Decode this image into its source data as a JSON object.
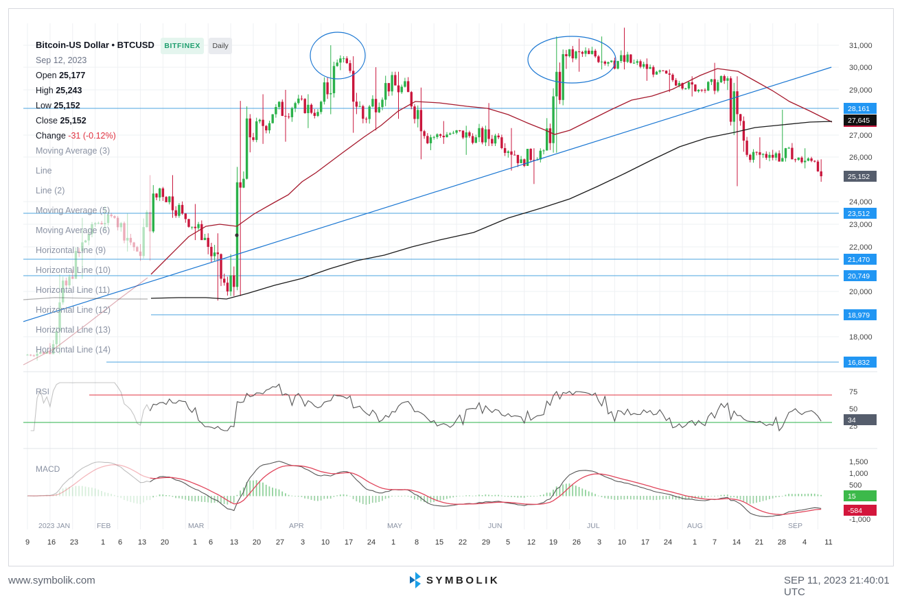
{
  "legend": {
    "title": "Bitcoin-US Dollar • BTCUSD",
    "exchange": "BITFINEX",
    "interval": "Daily",
    "date": "Sep 12, 2023",
    "open_label": "Open",
    "open": "25,177",
    "high_label": "High",
    "high": "25,243",
    "low_label": "Low",
    "low": "25,152",
    "close_label": "Close",
    "close": "25,152",
    "change_label": "Change",
    "change": "-31 (-0.12%)",
    "indicators": [
      "Moving Average (3)",
      "Line",
      "Line (2)",
      "Moving Average (5)",
      "Moving Average (6)",
      "Horizontal Line (9)",
      "Horizontal Line (10)",
      "Horizontal Line (11)",
      "Horizontal Line (12)",
      "Horizontal Line (13)",
      "Horizontal Line (14)"
    ]
  },
  "footer": {
    "website": "www.symbolik.com",
    "brand": "SYMBOLIK",
    "timestamp": "SEP 11, 2023 21:40:01 UTC"
  },
  "colors": {
    "up": "#2bb14a",
    "down": "#c9163c",
    "ma_red": "#a5172b",
    "ma_black": "#1a1a1a",
    "trend_blue": "#1976d2",
    "hline": "#4aa3df",
    "rsi_upper": "#e0313f",
    "rsi_lower": "#2bb14a"
  },
  "chart_data": [
    {
      "type": "candlestick",
      "title": "Bitcoin-US Dollar • BTCUSD",
      "x_axis": {
        "month_labels": [
          "2023 JAN",
          "FEB",
          "MAR",
          "APR",
          "MAY",
          "JUN",
          "JUL",
          "AUG",
          "SEP"
        ],
        "day_labels": [
          "9",
          "16",
          "23",
          "1",
          "6",
          "13",
          "20",
          "1",
          "6",
          "13",
          "20",
          "27",
          "3",
          "10",
          "17",
          "24",
          "1",
          "8",
          "15",
          "22",
          "29",
          "5",
          "12",
          "19",
          "26",
          "3",
          "10",
          "17",
          "24",
          "1",
          "7",
          "14",
          "21",
          "28",
          "4",
          "11"
        ]
      },
      "y_axis": {
        "ticks": [
          18000,
          20000,
          22000,
          23000,
          24000,
          26000,
          27000,
          29000,
          30000,
          31000
        ],
        "ylim": [
          16500,
          31600
        ]
      },
      "price_tags": [
        28161,
        27645,
        25152,
        23512,
        21470,
        20749,
        18979,
        16832
      ],
      "horizontal_lines": [
        28161,
        23512,
        21470,
        20749,
        18979,
        16832
      ],
      "trendline": {
        "from": {
          "date": "2023-01-09",
          "value": 19400
        },
        "to": {
          "date": "2023-09-12",
          "value": 30000
        }
      },
      "ohlc_weekly_approx": [
        {
          "date": "2023-01-09",
          "open": 17150,
          "high": 17400,
          "low": 16900,
          "close": 17300
        },
        {
          "date": "2023-01-16",
          "open": 17300,
          "high": 20800,
          "low": 17200,
          "close": 20700
        },
        {
          "date": "2023-01-23",
          "open": 20700,
          "high": 23300,
          "low": 20600,
          "close": 23000
        },
        {
          "date": "2023-01-30",
          "open": 23000,
          "high": 23800,
          "low": 22700,
          "close": 23300
        },
        {
          "date": "2023-02-06",
          "open": 23300,
          "high": 23500,
          "low": 21800,
          "close": 21800
        },
        {
          "date": "2023-02-13",
          "open": 21800,
          "high": 25200,
          "low": 21400,
          "close": 24600
        },
        {
          "date": "2023-02-20",
          "open": 24600,
          "high": 25200,
          "low": 23300,
          "close": 23500
        },
        {
          "date": "2023-02-27",
          "open": 23500,
          "high": 23900,
          "low": 22300,
          "close": 22400
        },
        {
          "date": "2023-03-06",
          "open": 22400,
          "high": 22600,
          "low": 19600,
          "close": 20000
        },
        {
          "date": "2023-03-13",
          "open": 20000,
          "high": 28500,
          "low": 19800,
          "close": 26900
        },
        {
          "date": "2023-03-20",
          "open": 26900,
          "high": 28800,
          "low": 26600,
          "close": 27900
        },
        {
          "date": "2023-03-27",
          "open": 27900,
          "high": 29000,
          "low": 26700,
          "close": 28400
        },
        {
          "date": "2023-04-03",
          "open": 28400,
          "high": 28800,
          "low": 27300,
          "close": 28000
        },
        {
          "date": "2023-04-10",
          "open": 28000,
          "high": 31000,
          "low": 27900,
          "close": 30400
        },
        {
          "date": "2023-04-17",
          "open": 30400,
          "high": 30500,
          "low": 27100,
          "close": 27700
        },
        {
          "date": "2023-04-24",
          "open": 27700,
          "high": 30000,
          "low": 27200,
          "close": 29300
        },
        {
          "date": "2023-05-01",
          "open": 29300,
          "high": 29800,
          "low": 27700,
          "close": 28900
        },
        {
          "date": "2023-05-08",
          "open": 28900,
          "high": 29100,
          "low": 25900,
          "close": 26900
        },
        {
          "date": "2023-05-15",
          "open": 26900,
          "high": 27600,
          "low": 26600,
          "close": 27100
        },
        {
          "date": "2023-05-22",
          "open": 27100,
          "high": 27400,
          "low": 26100,
          "close": 26900
        },
        {
          "date": "2023-05-29",
          "open": 26900,
          "high": 28400,
          "low": 26500,
          "close": 26900
        },
        {
          "date": "2023-06-05",
          "open": 26900,
          "high": 27300,
          "low": 25400,
          "close": 25900
        },
        {
          "date": "2023-06-12",
          "open": 25900,
          "high": 26400,
          "low": 24800,
          "close": 26300
        },
        {
          "date": "2023-06-19",
          "open": 26300,
          "high": 31400,
          "low": 26200,
          "close": 30500
        },
        {
          "date": "2023-06-26",
          "open": 30500,
          "high": 31300,
          "low": 29800,
          "close": 30600
        },
        {
          "date": "2023-07-03",
          "open": 30600,
          "high": 31400,
          "low": 29900,
          "close": 30300
        },
        {
          "date": "2023-07-10",
          "open": 30300,
          "high": 31800,
          "low": 29900,
          "close": 30200
        },
        {
          "date": "2023-07-17",
          "open": 30200,
          "high": 30400,
          "low": 29400,
          "close": 29800
        },
        {
          "date": "2023-07-24",
          "open": 29800,
          "high": 29900,
          "low": 28900,
          "close": 29300
        },
        {
          "date": "2023-07-31",
          "open": 29300,
          "high": 29600,
          "low": 28700,
          "close": 29000
        },
        {
          "date": "2023-08-07",
          "open": 29000,
          "high": 30200,
          "low": 28800,
          "close": 29400
        },
        {
          "date": "2023-08-14",
          "open": 29400,
          "high": 29600,
          "low": 24700,
          "close": 26100
        },
        {
          "date": "2023-08-21",
          "open": 26100,
          "high": 26900,
          "low": 25500,
          "close": 26100
        },
        {
          "date": "2023-08-28",
          "open": 26100,
          "high": 28100,
          "low": 25800,
          "close": 25900
        },
        {
          "date": "2023-09-04",
          "open": 25900,
          "high": 26400,
          "low": 25500,
          "close": 25800
        },
        {
          "date": "2023-09-11",
          "open": 25800,
          "high": 25900,
          "low": 24900,
          "close": 25152
        }
      ],
      "moving_averages": [
        {
          "color": "red",
          "last": 27645
        },
        {
          "color": "black",
          "last": 27645
        }
      ]
    },
    {
      "type": "line",
      "title": "RSI",
      "y_axis": {
        "ticks": [
          25,
          50,
          75
        ]
      },
      "reference_lines": [
        70,
        30
      ],
      "last_value": 34
    },
    {
      "type": "bar+line",
      "title": "MACD",
      "y_axis": {
        "ticks": [
          1500,
          1000,
          500,
          0,
          -1000
        ]
      },
      "last_values": [
        15,
        -584
      ]
    }
  ]
}
